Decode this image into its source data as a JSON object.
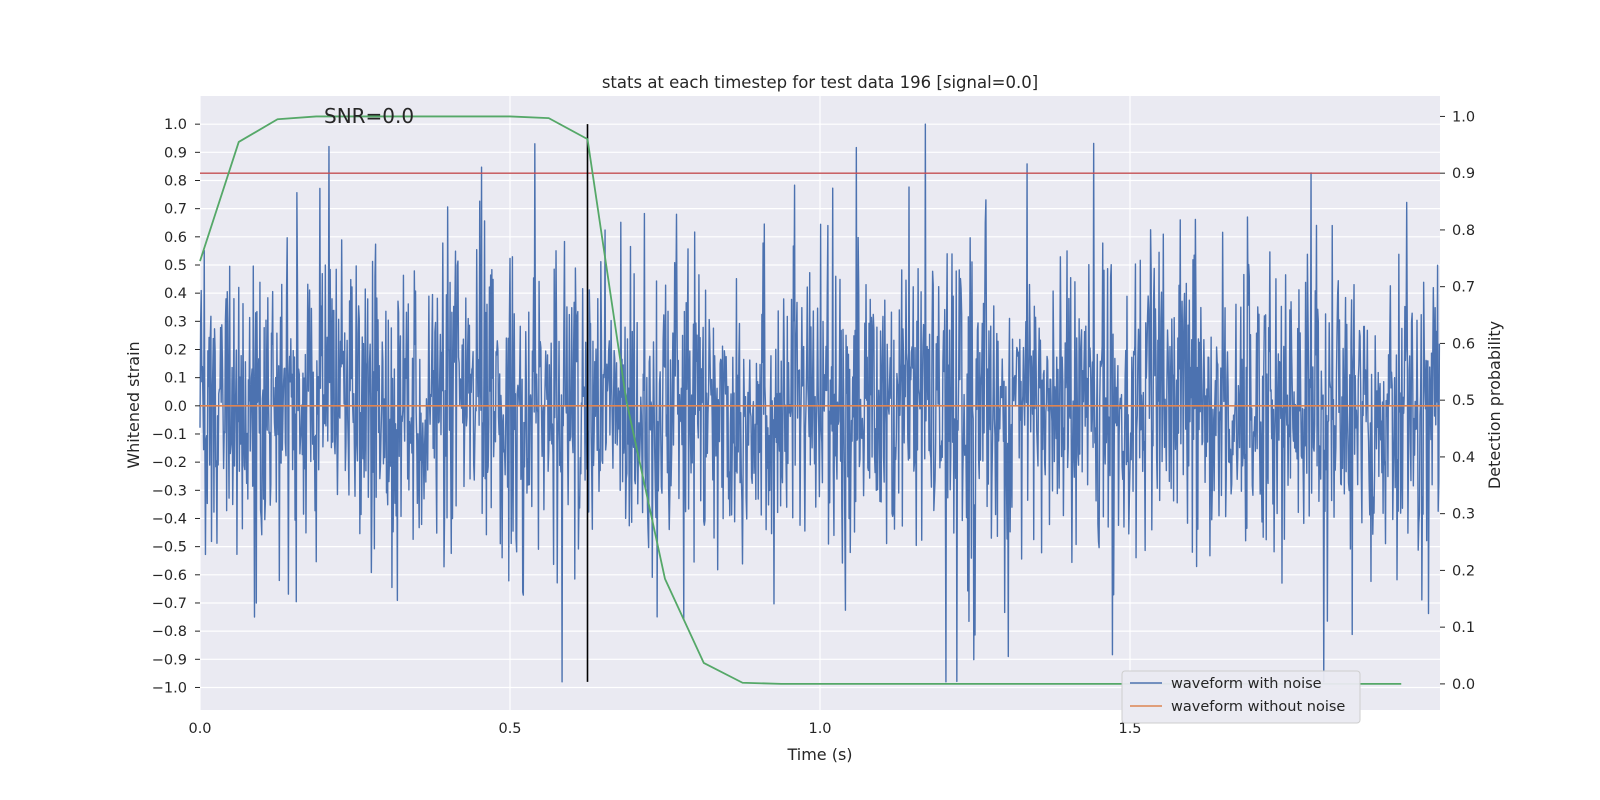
{
  "chart_data": {
    "type": "line",
    "title": "stats at each timestep for test data 196 [signal=0.0]",
    "xlabel": "Time (s)",
    "ylabel_left": "Whitened strain",
    "ylabel_right": "Detection probability",
    "xlim": [
      0.0,
      2.0
    ],
    "ylim_left": [
      -1.08,
      1.1
    ],
    "ylim_right": [
      -0.046,
      1.036
    ],
    "x_ticks": [
      0.0,
      0.5,
      1.0,
      1.5
    ],
    "x_tick_labels": [
      "0.0",
      "0.5",
      "1.0",
      "1.5"
    ],
    "y_left_ticks": [
      1.0,
      0.9,
      0.8,
      0.7,
      0.6,
      0.5,
      0.4,
      0.3,
      0.2,
      0.1,
      0.0,
      -0.1,
      -0.2,
      -0.3,
      -0.4,
      -0.5,
      -0.6,
      -0.7,
      -0.8,
      -0.9,
      -1.0
    ],
    "y_left_tick_labels": [
      "1.0",
      "0.9",
      "0.8",
      "0.7",
      "0.6",
      "0.5",
      "0.4",
      "0.3",
      "0.2",
      "0.1",
      "0.0",
      "−0.1",
      "−0.2",
      "−0.3",
      "−0.4",
      "−0.5",
      "−0.6",
      "−0.7",
      "−0.8",
      "−0.9",
      "−1.0"
    ],
    "y_right_ticks": [
      1.0,
      0.9,
      0.8,
      0.7,
      0.6,
      0.5,
      0.4,
      0.3,
      0.2,
      0.1,
      0.0
    ],
    "y_right_tick_labels": [
      "1.0",
      "0.9",
      "0.8",
      "0.7",
      "0.6",
      "0.5",
      "0.4",
      "0.3",
      "0.2",
      "0.1",
      "0.0"
    ],
    "annotation": "SNR=0.0",
    "annotation_x": 0.2,
    "annotation_y": 1.0,
    "threshold_right": 0.9,
    "marker_time": 0.625,
    "marker_range_left": [
      -0.98,
      1.0
    ],
    "grid": true,
    "legend_position": "lower-right",
    "background_color": "#eaeaf2",
    "series": [
      {
        "name": "waveform with noise",
        "axis": "left",
        "color": "#4c72b0",
        "sample_count": 2048,
        "amplitude_min": -0.98,
        "amplitude_max": 1.0
      },
      {
        "name": "waveform without noise",
        "axis": "left",
        "color": "#dd8452",
        "constant_value": 0.0
      },
      {
        "name": "",
        "axis": "right",
        "color": "#55a868",
        "x": [
          0.0,
          0.0625,
          0.125,
          0.1875,
          0.25,
          0.3125,
          0.375,
          0.4375,
          0.5,
          0.5625,
          0.625,
          0.6875,
          0.75,
          0.8125,
          0.875,
          0.9375,
          1.0,
          1.0625,
          1.125,
          1.1875,
          1.25,
          1.3125,
          1.375,
          1.4375,
          1.5,
          1.5625,
          1.625,
          1.6875,
          1.75,
          1.8125,
          1.875,
          1.9375
        ],
        "y": [
          0.745,
          0.955,
          0.995,
          1.0,
          1.0,
          1.0,
          1.0,
          1.0,
          1.0,
          0.997,
          0.96,
          0.5,
          0.185,
          0.037,
          0.002,
          0.0,
          0.0,
          0.0,
          0.0,
          0.0,
          0.0,
          0.0,
          0.0,
          0.0,
          0.0,
          0.0,
          0.0,
          0.0,
          0.0,
          0.0,
          0.0,
          0.0
        ]
      },
      {
        "name": "",
        "axis": "right",
        "color": "#c44e52",
        "role": "threshold"
      },
      {
        "name": "",
        "axis": "left",
        "color": "#000000",
        "role": "marker"
      }
    ]
  }
}
